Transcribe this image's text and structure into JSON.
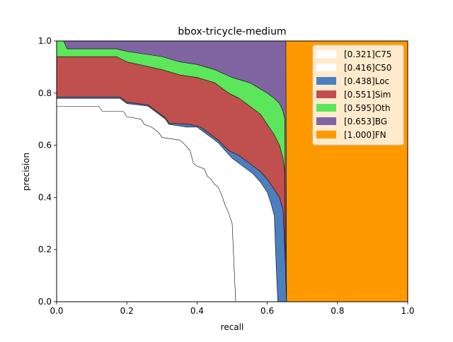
{
  "chart_data": {
    "type": "area",
    "title": "bbox-tricycle-medium",
    "xlabel": "recall",
    "ylabel": "precision",
    "xlim": [
      0,
      1
    ],
    "ylim": [
      0,
      1
    ],
    "x_ticks": [
      "0.0",
      "0.2",
      "0.4",
      "0.6",
      "0.8",
      "1.0"
    ],
    "y_ticks": [
      "0.0",
      "0.2",
      "0.4",
      "0.6",
      "0.8",
      "1.0"
    ],
    "grid": false,
    "legend_position": "top-right",
    "series": [
      {
        "name": "[0.321]C75",
        "color": "#ffffff",
        "points": [
          [
            0.0,
            0.75
          ],
          [
            0.12,
            0.75
          ],
          [
            0.13,
            0.73
          ],
          [
            0.19,
            0.73
          ],
          [
            0.2,
            0.71
          ],
          [
            0.24,
            0.7
          ],
          [
            0.25,
            0.68
          ],
          [
            0.27,
            0.67
          ],
          [
            0.29,
            0.65
          ],
          [
            0.3,
            0.63
          ],
          [
            0.35,
            0.62
          ],
          [
            0.36,
            0.61
          ],
          [
            0.38,
            0.58
          ],
          [
            0.39,
            0.53
          ],
          [
            0.4,
            0.52
          ],
          [
            0.42,
            0.51
          ],
          [
            0.43,
            0.48
          ],
          [
            0.44,
            0.47
          ],
          [
            0.45,
            0.45
          ],
          [
            0.46,
            0.44
          ],
          [
            0.47,
            0.41
          ],
          [
            0.48,
            0.37
          ],
          [
            0.49,
            0.34
          ],
          [
            0.5,
            0.3
          ],
          [
            0.505,
            0.15
          ],
          [
            0.51,
            0.0
          ]
        ]
      },
      {
        "name": "[0.416]C50",
        "color": "#ffffff",
        "points": [
          [
            0.0,
            0.78
          ],
          [
            0.18,
            0.78
          ],
          [
            0.2,
            0.76
          ],
          [
            0.26,
            0.75
          ],
          [
            0.29,
            0.72
          ],
          [
            0.31,
            0.7
          ],
          [
            0.32,
            0.68
          ],
          [
            0.37,
            0.67
          ],
          [
            0.4,
            0.67
          ],
          [
            0.42,
            0.65
          ],
          [
            0.44,
            0.63
          ],
          [
            0.46,
            0.61
          ],
          [
            0.48,
            0.58
          ],
          [
            0.5,
            0.55
          ],
          [
            0.52,
            0.53
          ],
          [
            0.54,
            0.51
          ],
          [
            0.56,
            0.49
          ],
          [
            0.58,
            0.46
          ],
          [
            0.6,
            0.42
          ],
          [
            0.61,
            0.38
          ],
          [
            0.62,
            0.33
          ],
          [
            0.625,
            0.15
          ],
          [
            0.63,
            0.0
          ]
        ]
      },
      {
        "name": "[0.438]Loc",
        "color": "#4c7fc0",
        "points": [
          [
            0.0,
            0.785
          ],
          [
            0.18,
            0.785
          ],
          [
            0.2,
            0.765
          ],
          [
            0.26,
            0.755
          ],
          [
            0.29,
            0.725
          ],
          [
            0.31,
            0.705
          ],
          [
            0.32,
            0.685
          ],
          [
            0.38,
            0.68
          ],
          [
            0.41,
            0.67
          ],
          [
            0.43,
            0.65
          ],
          [
            0.46,
            0.62
          ],
          [
            0.49,
            0.58
          ],
          [
            0.52,
            0.56
          ],
          [
            0.55,
            0.53
          ],
          [
            0.58,
            0.5
          ],
          [
            0.6,
            0.47
          ],
          [
            0.62,
            0.43
          ],
          [
            0.635,
            0.4
          ],
          [
            0.645,
            0.35
          ],
          [
            0.65,
            0.2
          ],
          [
            0.655,
            0.0
          ]
        ]
      },
      {
        "name": "[0.551]Sim",
        "color": "#c0504d",
        "points": [
          [
            0.0,
            0.94
          ],
          [
            0.17,
            0.94
          ],
          [
            0.2,
            0.92
          ],
          [
            0.3,
            0.89
          ],
          [
            0.35,
            0.87
          ],
          [
            0.4,
            0.86
          ],
          [
            0.45,
            0.84
          ],
          [
            0.49,
            0.8
          ],
          [
            0.52,
            0.78
          ],
          [
            0.55,
            0.75
          ],
          [
            0.58,
            0.72
          ],
          [
            0.6,
            0.68
          ],
          [
            0.62,
            0.64
          ],
          [
            0.635,
            0.6
          ],
          [
            0.645,
            0.55
          ],
          [
            0.65,
            0.5
          ],
          [
            0.652,
            0.0
          ]
        ]
      },
      {
        "name": "[0.595]Oth",
        "color": "#5ce65c",
        "points": [
          [
            0.0,
            1.0
          ],
          [
            0.02,
            1.0
          ],
          [
            0.03,
            0.97
          ],
          [
            0.17,
            0.97
          ],
          [
            0.2,
            0.96
          ],
          [
            0.3,
            0.94
          ],
          [
            0.35,
            0.92
          ],
          [
            0.4,
            0.91
          ],
          [
            0.45,
            0.89
          ],
          [
            0.5,
            0.86
          ],
          [
            0.55,
            0.84
          ],
          [
            0.6,
            0.8
          ],
          [
            0.62,
            0.78
          ],
          [
            0.635,
            0.76
          ],
          [
            0.645,
            0.73
          ],
          [
            0.65,
            0.7
          ],
          [
            0.652,
            0.0
          ]
        ]
      },
      {
        "name": "[0.653]BG",
        "color": "#8064a2",
        "points": [
          [
            0.0,
            1.0
          ],
          [
            0.653,
            1.0
          ],
          [
            0.655,
            0.0
          ]
        ]
      },
      {
        "name": "[1.000]FN",
        "color": "#ff9900",
        "points": [
          [
            0.0,
            1.0
          ],
          [
            1.0,
            1.0
          ],
          [
            1.0,
            0.0
          ]
        ]
      }
    ]
  }
}
